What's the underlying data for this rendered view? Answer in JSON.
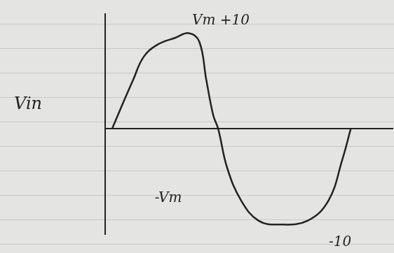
{
  "chart_data": {
    "type": "line",
    "ylabel": "Vin",
    "annotations": [
      "Vm +10",
      "-Vm",
      "-10"
    ],
    "x": [
      10,
      25,
      40,
      55,
      75,
      100,
      120,
      135,
      145,
      155,
      162,
      175,
      195,
      220,
      250,
      290,
      320,
      340,
      352
    ],
    "values": [
      0,
      2.6,
      5.1,
      7.5,
      8.8,
      9.5,
      10,
      9.1,
      5.1,
      1.4,
      0,
      -4.1,
      -7.5,
      -9.6,
      -10,
      -9.6,
      -7.5,
      -3.2,
      0
    ],
    "xlim": [
      0,
      412
    ],
    "ylim": [
      -11,
      12
    ],
    "tick_labels": false,
    "grid": false,
    "color": "#222222"
  }
}
